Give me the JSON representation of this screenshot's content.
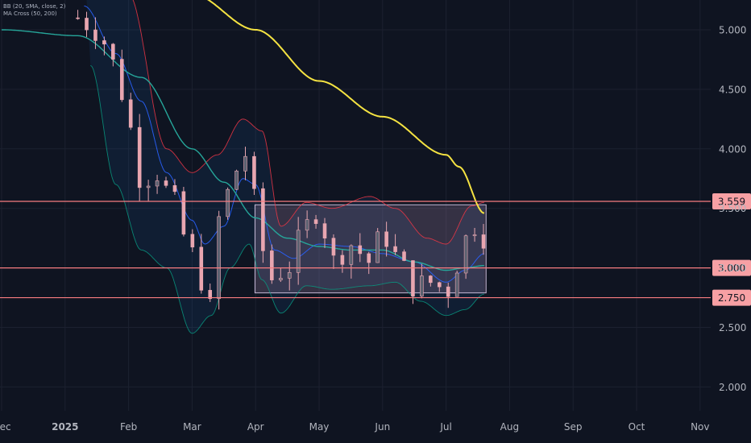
{
  "legend": {
    "bb": "BB (20, SMA, close, 2)",
    "ma": "MA Cross (50, 200)"
  },
  "colors": {
    "background": "#0f1421",
    "grid": "#1c2130",
    "line_200": "#f5e342",
    "line_50": "#26a69a",
    "bb_basis": "#2962ff",
    "bb_upper": "#f23645",
    "bb_lower": "#089981",
    "bb_fill": "#1e88e5",
    "candle": "#e8a6b0",
    "hline": "#f77c80",
    "hline_label": "#f7a0a4",
    "box_fill": "#9c7ea0",
    "box_stroke": "#c5b9d6"
  },
  "chart_data": {
    "type": "candlestick",
    "y_axis": {
      "ticks": [
        "2.000",
        "2.500",
        "3.000",
        "3.500",
        "4.000",
        "4.500",
        "5.000"
      ],
      "range": [
        1.8,
        5.25
      ]
    },
    "x_axis": {
      "months": [
        {
          "label": "Dec",
          "bold": false
        },
        {
          "label": "2025",
          "bold": true
        },
        {
          "label": "Feb",
          "bold": false
        },
        {
          "label": "Mar",
          "bold": false
        },
        {
          "label": "Apr",
          "bold": false
        },
        {
          "label": "May",
          "bold": false
        },
        {
          "label": "Jun",
          "bold": false
        },
        {
          "label": "Jul",
          "bold": false
        },
        {
          "label": "Aug",
          "bold": false
        },
        {
          "label": "Sep",
          "bold": false
        },
        {
          "label": "Oct",
          "bold": false
        },
        {
          "label": "Nov",
          "bold": false
        }
      ]
    },
    "horizontal_levels": [
      {
        "value": 3.559,
        "label": "3.559"
      },
      {
        "value": 3.0,
        "label": "3.000"
      },
      {
        "value": 2.75,
        "label": "2.750"
      }
    ],
    "range_box": {
      "x_start_month": 3.99,
      "x_end_month": 7.63,
      "y_top": 3.53,
      "y_bottom": 2.79
    },
    "ma200": [
      [
        2.4,
        5.4
      ],
      [
        3.0,
        5.3
      ],
      [
        4.0,
        5.0
      ],
      [
        5.0,
        4.57
      ],
      [
        6.0,
        4.27
      ],
      [
        7.0,
        3.95
      ],
      [
        7.2,
        3.85
      ],
      [
        7.6,
        3.46
      ]
    ],
    "ma50": [
      [
        0.0,
        5.0
      ],
      [
        1.2,
        4.95
      ],
      [
        2.2,
        4.6
      ],
      [
        3.0,
        4.0
      ],
      [
        3.5,
        3.72
      ],
      [
        4.0,
        3.42
      ],
      [
        4.5,
        3.25
      ],
      [
        5.0,
        3.18
      ],
      [
        5.5,
        3.15
      ],
      [
        6.0,
        3.15
      ],
      [
        6.5,
        3.05
      ],
      [
        7.0,
        2.98
      ],
      [
        7.3,
        3.0
      ],
      [
        7.6,
        3.02
      ]
    ],
    "bb_basis": [
      [
        1.3,
        5.2
      ],
      [
        1.8,
        4.8
      ],
      [
        2.2,
        4.4
      ],
      [
        2.6,
        3.8
      ],
      [
        3.0,
        3.4
      ],
      [
        3.2,
        3.2
      ],
      [
        3.5,
        3.35
      ],
      [
        3.8,
        3.75
      ],
      [
        4.0,
        3.7
      ],
      [
        4.3,
        3.15
      ],
      [
        4.6,
        3.08
      ],
      [
        5.0,
        3.2
      ],
      [
        5.5,
        3.18
      ],
      [
        6.0,
        3.12
      ],
      [
        6.5,
        3.05
      ],
      [
        7.0,
        2.88
      ],
      [
        7.3,
        2.98
      ],
      [
        7.6,
        3.12
      ]
    ],
    "bb_upper": [
      [
        1.3,
        5.6
      ],
      [
        2.0,
        5.3
      ],
      [
        2.6,
        4.0
      ],
      [
        3.0,
        3.8
      ],
      [
        3.4,
        3.95
      ],
      [
        3.8,
        4.25
      ],
      [
        4.1,
        4.15
      ],
      [
        4.4,
        3.35
      ],
      [
        4.8,
        3.55
      ],
      [
        5.2,
        3.5
      ],
      [
        5.8,
        3.6
      ],
      [
        6.2,
        3.5
      ],
      [
        6.7,
        3.25
      ],
      [
        7.0,
        3.2
      ],
      [
        7.4,
        3.52
      ],
      [
        7.6,
        3.55
      ]
    ],
    "bb_lower": [
      [
        1.4,
        4.7
      ],
      [
        1.8,
        3.7
      ],
      [
        2.2,
        3.15
      ],
      [
        2.6,
        3.0
      ],
      [
        3.0,
        2.45
      ],
      [
        3.3,
        2.6
      ],
      [
        3.6,
        3.0
      ],
      [
        3.9,
        3.2
      ],
      [
        4.1,
        2.9
      ],
      [
        4.4,
        2.62
      ],
      [
        4.8,
        2.85
      ],
      [
        5.2,
        2.82
      ],
      [
        5.8,
        2.85
      ],
      [
        6.2,
        2.88
      ],
      [
        6.6,
        2.72
      ],
      [
        7.0,
        2.6
      ],
      [
        7.3,
        2.65
      ],
      [
        7.6,
        2.78
      ]
    ],
    "candle_path": [
      [
        1.2,
        5.1
      ],
      [
        1.5,
        5.0
      ],
      [
        1.8,
        4.7
      ],
      [
        2.0,
        4.2
      ],
      [
        2.2,
        3.75
      ],
      [
        2.45,
        3.8
      ],
      [
        2.7,
        3.55
      ],
      [
        2.9,
        3.25
      ],
      [
        3.1,
        3.0
      ],
      [
        3.25,
        2.55
      ],
      [
        3.4,
        3.4
      ],
      [
        3.6,
        3.65
      ],
      [
        3.8,
        4.0
      ],
      [
        4.0,
        3.55
      ],
      [
        4.2,
        2.9
      ],
      [
        4.5,
        3.0
      ],
      [
        4.8,
        3.35
      ],
      [
        5.0,
        3.5
      ],
      [
        5.2,
        3.05
      ],
      [
        5.5,
        3.2
      ],
      [
        5.8,
        3.05
      ],
      [
        6.0,
        3.3
      ],
      [
        6.2,
        3.1
      ],
      [
        6.5,
        2.85
      ],
      [
        6.8,
        2.88
      ],
      [
        7.0,
        2.8
      ],
      [
        7.2,
        3.05
      ],
      [
        7.4,
        3.38
      ],
      [
        7.55,
        3.32
      ],
      [
        7.65,
        3.18
      ]
    ]
  }
}
